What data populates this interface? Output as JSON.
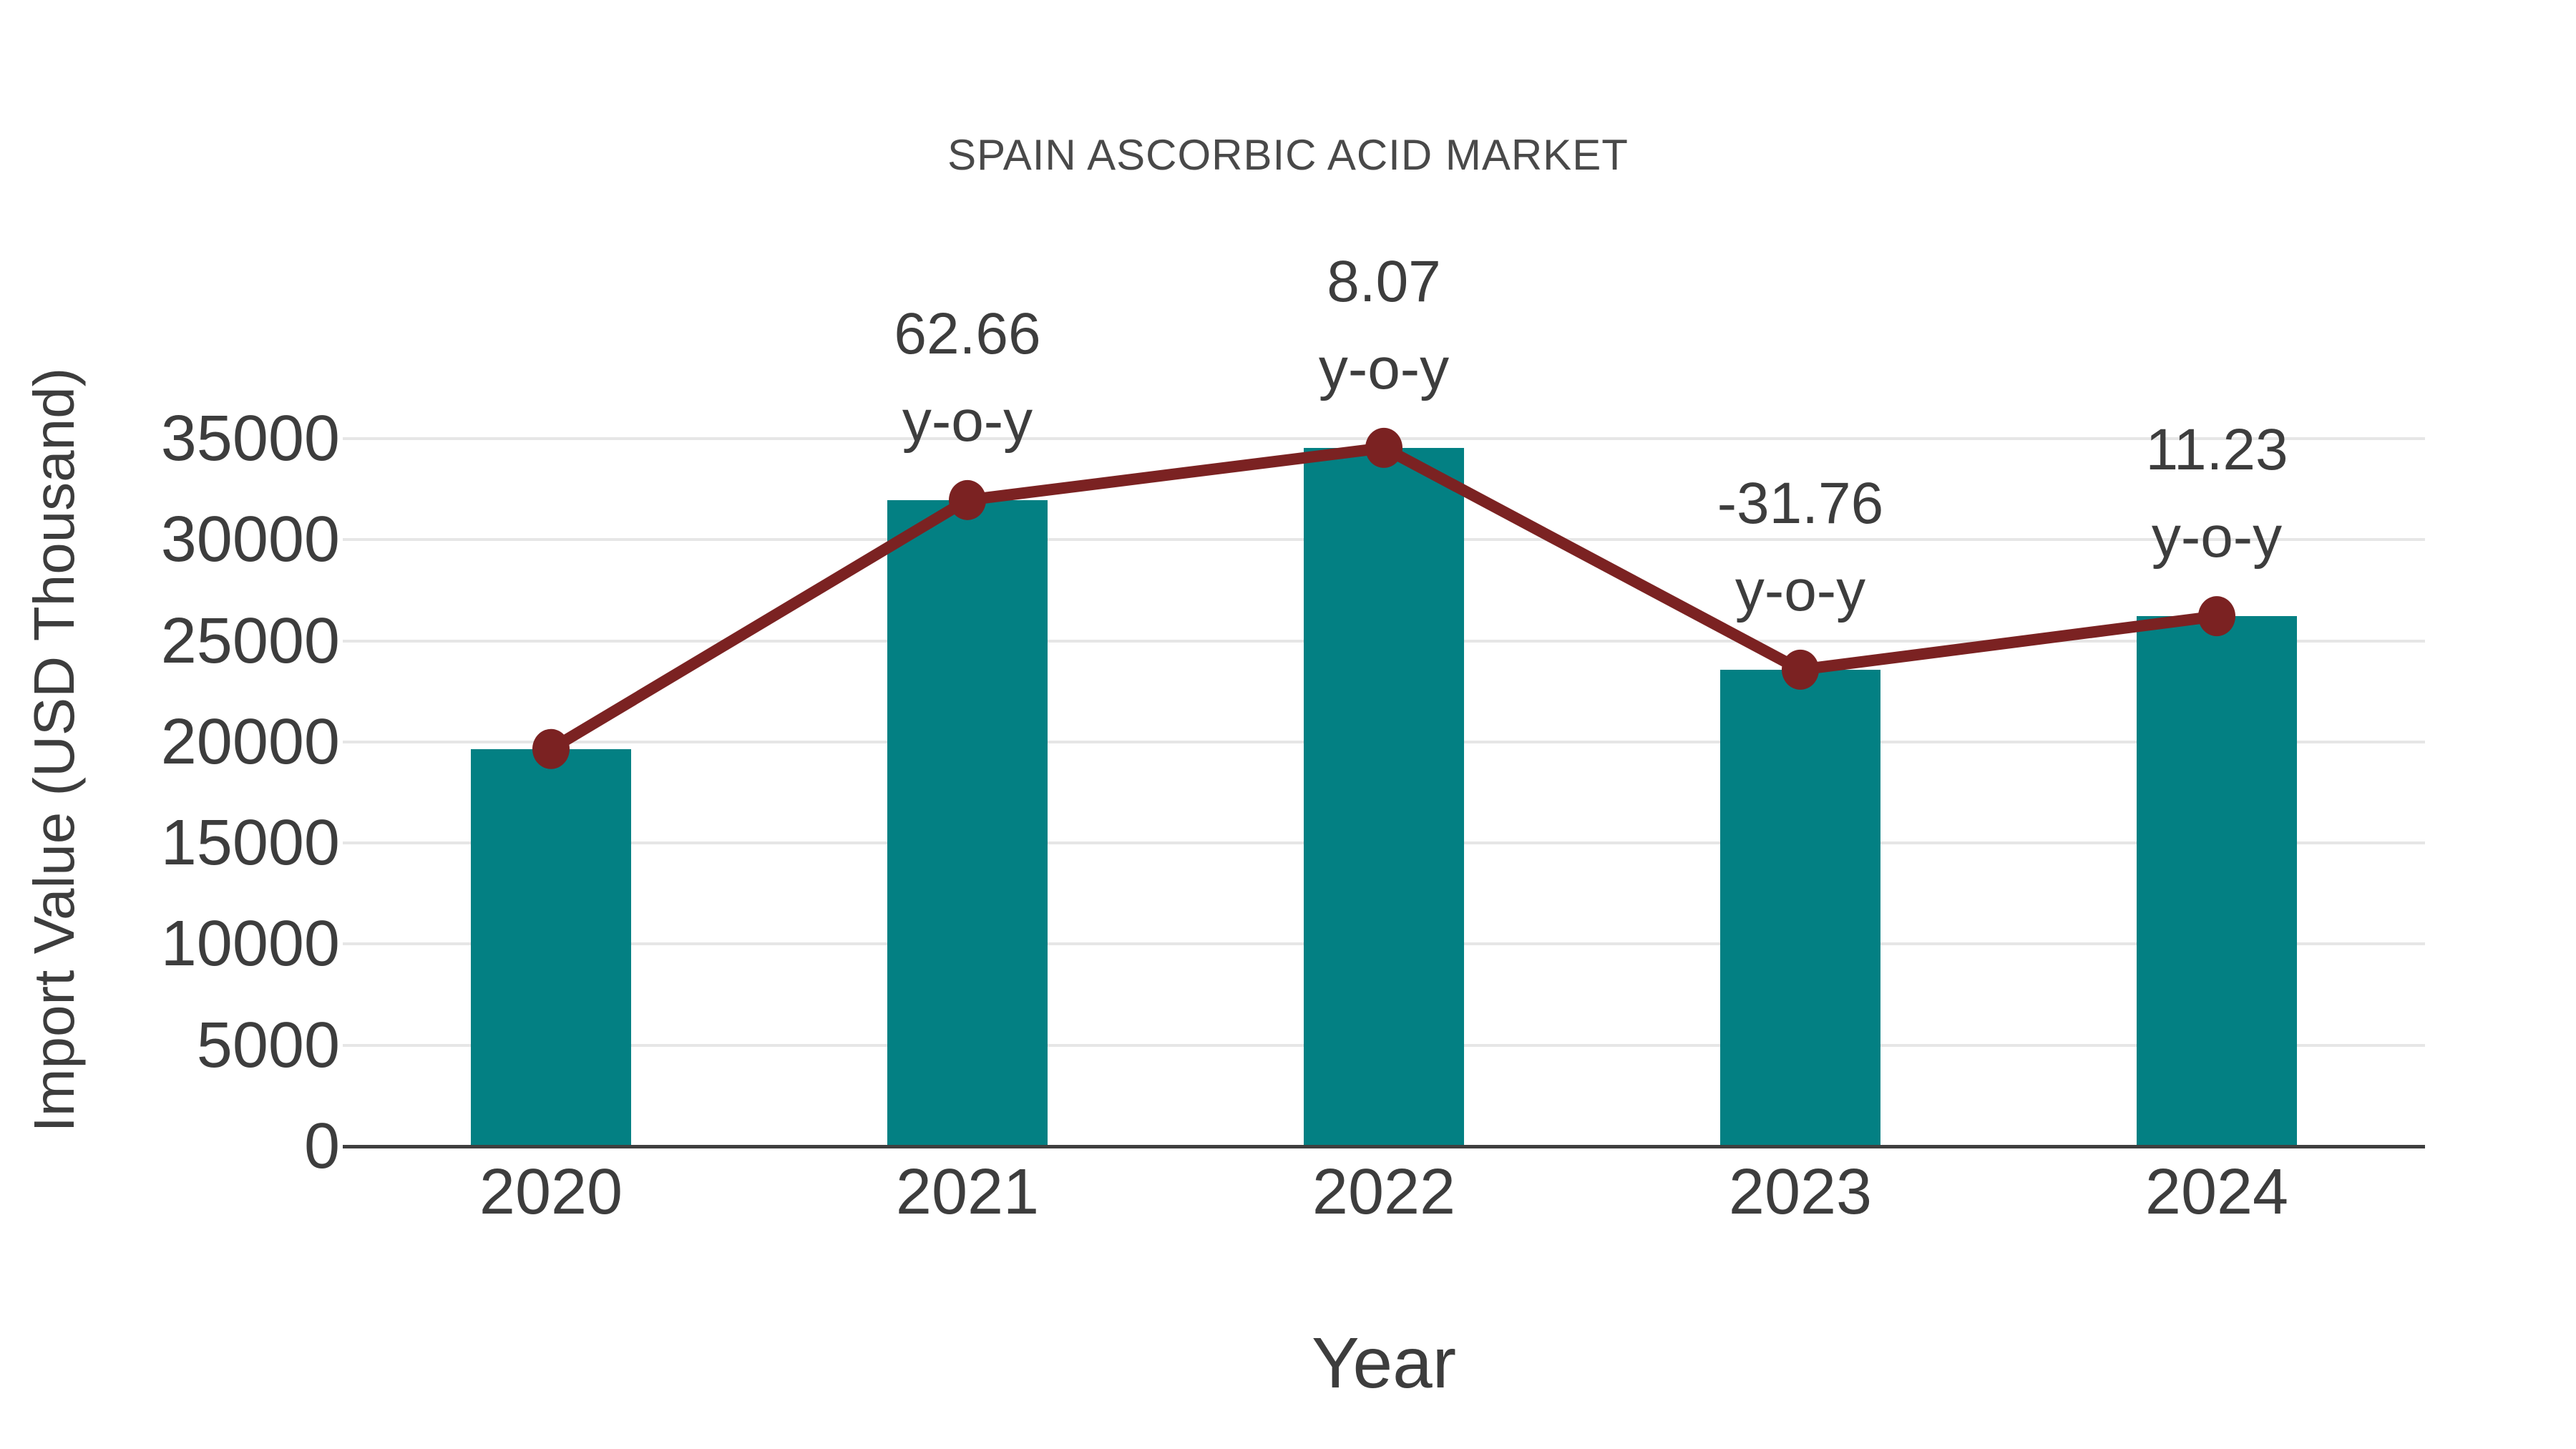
{
  "page": {
    "background": "#FFFFFF"
  },
  "chart_data": {
    "type": "bar",
    "title": "SPAIN ASCORBIC ACID MARKET",
    "xlabel": "Year",
    "ylabel": "Import Value (USD Thousand)",
    "categories": [
      "2020",
      "2021",
      "2022",
      "2023",
      "2024"
    ],
    "series": [
      {
        "name": "Import Value (USD Thousand)",
        "type": "bar",
        "color": "#038083",
        "values": [
          19650,
          31963,
          34543,
          23572,
          26219
        ]
      },
      {
        "name": "Import Value trend",
        "type": "line",
        "color": "#7B2222",
        "values": [
          19650,
          31963,
          34543,
          23572,
          26219
        ]
      }
    ],
    "yoy_growth_pct": {
      "2021": 62.66,
      "2022": 8.07,
      "2023": -31.76,
      "2024": 11.23
    },
    "annotations": [
      {
        "category": "2021",
        "line1": "62.66",
        "line2": "y-o-y"
      },
      {
        "category": "2022",
        "line1": "8.07",
        "line2": "y-o-y"
      },
      {
        "category": "2023",
        "line1": "-31.76",
        "line2": "y-o-y"
      },
      {
        "category": "2024",
        "line1": "11.23",
        "line2": "y-o-y"
      }
    ],
    "y_ticks": [
      0,
      5000,
      10000,
      15000,
      20000,
      25000,
      30000,
      35000
    ],
    "ylim": [
      0,
      35000
    ],
    "grid": true,
    "legend_position": "none",
    "colors": {
      "bar": "#038083",
      "line": "#7B2222",
      "marker": "#7B2222",
      "grid": "#E6E6E6",
      "axis": "#3F3F3F",
      "title_text": "#494949",
      "tick_text": "#3D3D3D"
    }
  }
}
